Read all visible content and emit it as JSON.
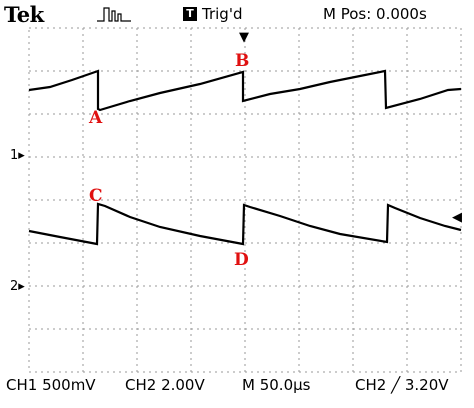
{
  "header": {
    "brand": "Tek",
    "trigger_state_icon": "T",
    "trigger_state": "Trig'd",
    "m_pos": "M Pos: 0.000s"
  },
  "markers": {
    "trigger_position_icon": "down-arrow-icon",
    "trigger_level_icon": "left-arrow-icon",
    "ch1": "1",
    "ch2": "2"
  },
  "points": {
    "a": "A",
    "b": "B",
    "c": "C",
    "d": "D"
  },
  "status": {
    "ch1": "CH1  500mV",
    "ch2": "CH2  2.00V",
    "timebase": "M 50.0µs",
    "trigger": "CH2 ╱ 3.20V"
  },
  "colors": {
    "trace": "#000000",
    "annotation": "#e01010",
    "grid": "#9a9a9a"
  }
}
